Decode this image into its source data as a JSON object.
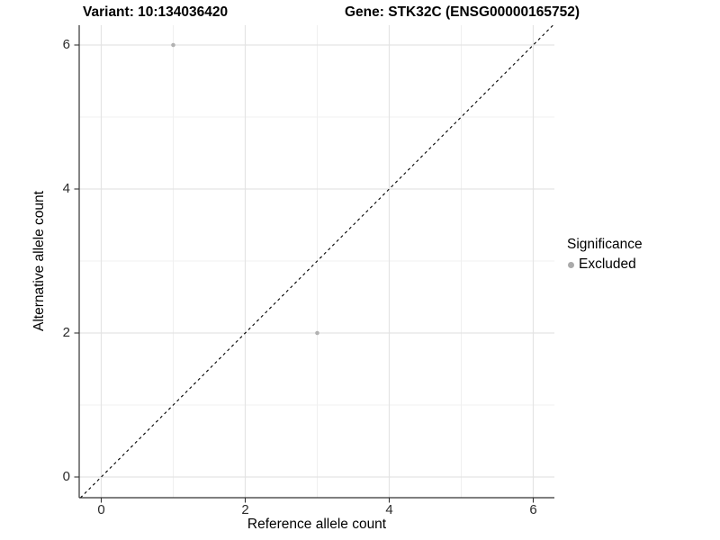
{
  "title": {
    "variant": "Variant: 10:134036420",
    "gene": "Gene: STK32C (ENSG00000165752)"
  },
  "legend": {
    "title": "Significance",
    "items": [
      {
        "label": "Excluded",
        "color": "#aaaaaa"
      }
    ]
  },
  "chart_data": {
    "type": "scatter",
    "title": "Variant: 10:134036420    Gene: STK32C (ENSG00000165752)",
    "xlabel": "Reference allele count",
    "ylabel": "Alternative allele count",
    "points": [
      {
        "x": 1,
        "y": 6,
        "significance": "Excluded"
      },
      {
        "x": 3,
        "y": 2,
        "significance": "Excluded"
      }
    ],
    "x_ticks": [
      0,
      2,
      4,
      6
    ],
    "y_ticks": [
      0,
      2,
      4,
      6
    ],
    "minor_ticks": [
      1,
      3,
      5
    ],
    "xlim": [
      -0.29,
      6.28
    ],
    "ylim": [
      -0.29,
      6.28
    ],
    "abline": {
      "slope": 1,
      "intercept": 0,
      "style": "dashed",
      "color": "#000000"
    },
    "point_color": "#b2b2b2",
    "point_radius": 2.3,
    "grid": true,
    "legend_position": "right",
    "legend_title": "Significance",
    "legend_entries": [
      "Excluded"
    ]
  },
  "colors": {
    "axis": "#333333",
    "grid_major": "#e4e4e4",
    "grid_minor": "#f0f0f0",
    "background": "#ffffff"
  }
}
